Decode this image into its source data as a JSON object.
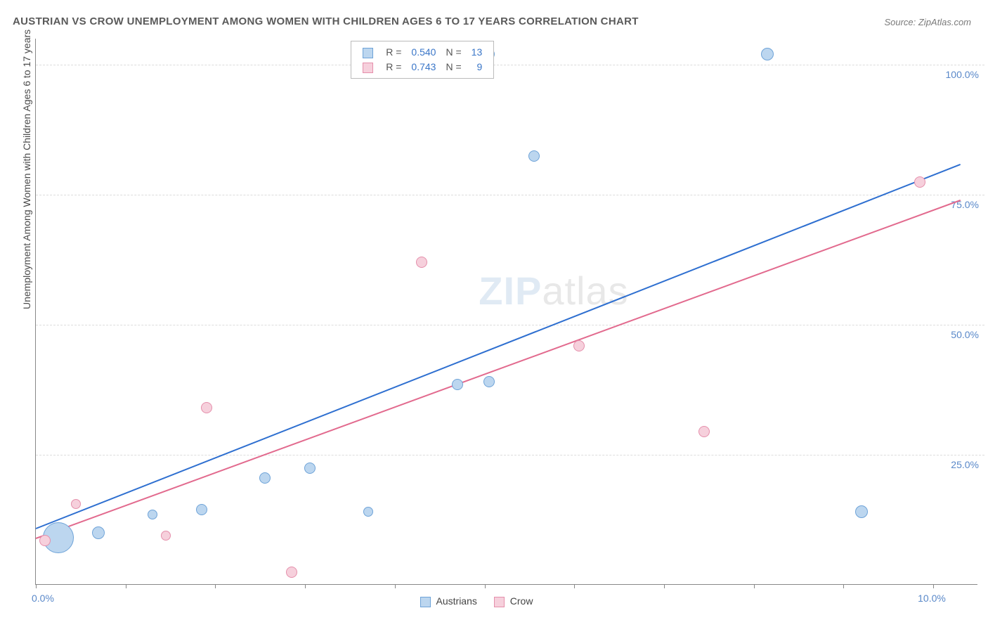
{
  "title": "AUSTRIAN VS CROW UNEMPLOYMENT AMONG WOMEN WITH CHILDREN AGES 6 TO 17 YEARS CORRELATION CHART",
  "source": "Source: ZipAtlas.com",
  "y_axis_title": "Unemployment Among Women with Children Ages 6 to 17 years",
  "watermark": {
    "part1": "ZIP",
    "part2": "atlas"
  },
  "chart": {
    "type": "scatter",
    "xlim": [
      0,
      10.5
    ],
    "ylim": [
      0,
      105
    ],
    "x_ticks": [
      0,
      1,
      2,
      3,
      4,
      5,
      6,
      7,
      8,
      9,
      10
    ],
    "x_labels": [
      {
        "v": 0.0,
        "t": "0.0%"
      },
      {
        "v": 10.0,
        "t": "10.0%"
      }
    ],
    "y_gridlines": [
      25,
      50,
      75,
      100
    ],
    "y_labels": [
      {
        "v": 25,
        "t": "25.0%"
      },
      {
        "v": 50,
        "t": "50.0%"
      },
      {
        "v": 75,
        "t": "75.0%"
      },
      {
        "v": 100,
        "t": "100.0%"
      }
    ],
    "grid_color": "#dcdcdc",
    "background_color": "#ffffff",
    "series": [
      {
        "name": "Austrians",
        "fill": "#bcd6ef",
        "stroke": "#6ea3d8",
        "line_color": "#2e6fd0",
        "r_value": "0.540",
        "n_value": "13",
        "points": [
          {
            "x": 0.25,
            "y": 9.0,
            "r": 22
          },
          {
            "x": 0.7,
            "y": 10.0,
            "r": 9
          },
          {
            "x": 1.3,
            "y": 13.5,
            "r": 7
          },
          {
            "x": 1.85,
            "y": 14.5,
            "r": 8
          },
          {
            "x": 2.55,
            "y": 20.5,
            "r": 8
          },
          {
            "x": 3.05,
            "y": 22.5,
            "r": 8
          },
          {
            "x": 3.7,
            "y": 14.0,
            "r": 7
          },
          {
            "x": 4.7,
            "y": 38.5,
            "r": 8
          },
          {
            "x": 5.05,
            "y": 39.0,
            "r": 8
          },
          {
            "x": 5.05,
            "y": 102.0,
            "r": 8
          },
          {
            "x": 5.55,
            "y": 82.5,
            "r": 8
          },
          {
            "x": 8.15,
            "y": 102.0,
            "r": 9
          },
          {
            "x": 9.2,
            "y": 14.0,
            "r": 9
          }
        ],
        "trend": {
          "x1": 0.0,
          "y1": 11.0,
          "x2": 10.3,
          "y2": 81.0
        }
      },
      {
        "name": "Crow",
        "fill": "#f6d0dc",
        "stroke": "#e58fab",
        "line_color": "#e26a8e",
        "r_value": "0.743",
        "n_value": "9",
        "points": [
          {
            "x": 0.1,
            "y": 8.5,
            "r": 8
          },
          {
            "x": 0.45,
            "y": 15.5,
            "r": 7
          },
          {
            "x": 1.45,
            "y": 9.5,
            "r": 7
          },
          {
            "x": 1.9,
            "y": 34.0,
            "r": 8
          },
          {
            "x": 2.85,
            "y": 2.5,
            "r": 8
          },
          {
            "x": 4.3,
            "y": 62.0,
            "r": 8
          },
          {
            "x": 6.05,
            "y": 46.0,
            "r": 8
          },
          {
            "x": 7.45,
            "y": 29.5,
            "r": 8
          },
          {
            "x": 9.85,
            "y": 77.5,
            "r": 8
          }
        ],
        "trend": {
          "x1": 0.0,
          "y1": 9.0,
          "x2": 10.3,
          "y2": 74.0
        }
      }
    ]
  },
  "legend_top": {
    "r_label": "R =",
    "n_label": "N ="
  },
  "legend_bottom": [
    {
      "label": "Austrians",
      "fill": "#bcd6ef",
      "stroke": "#6ea3d8"
    },
    {
      "label": "Crow",
      "fill": "#f6d0dc",
      "stroke": "#e58fab"
    }
  ]
}
